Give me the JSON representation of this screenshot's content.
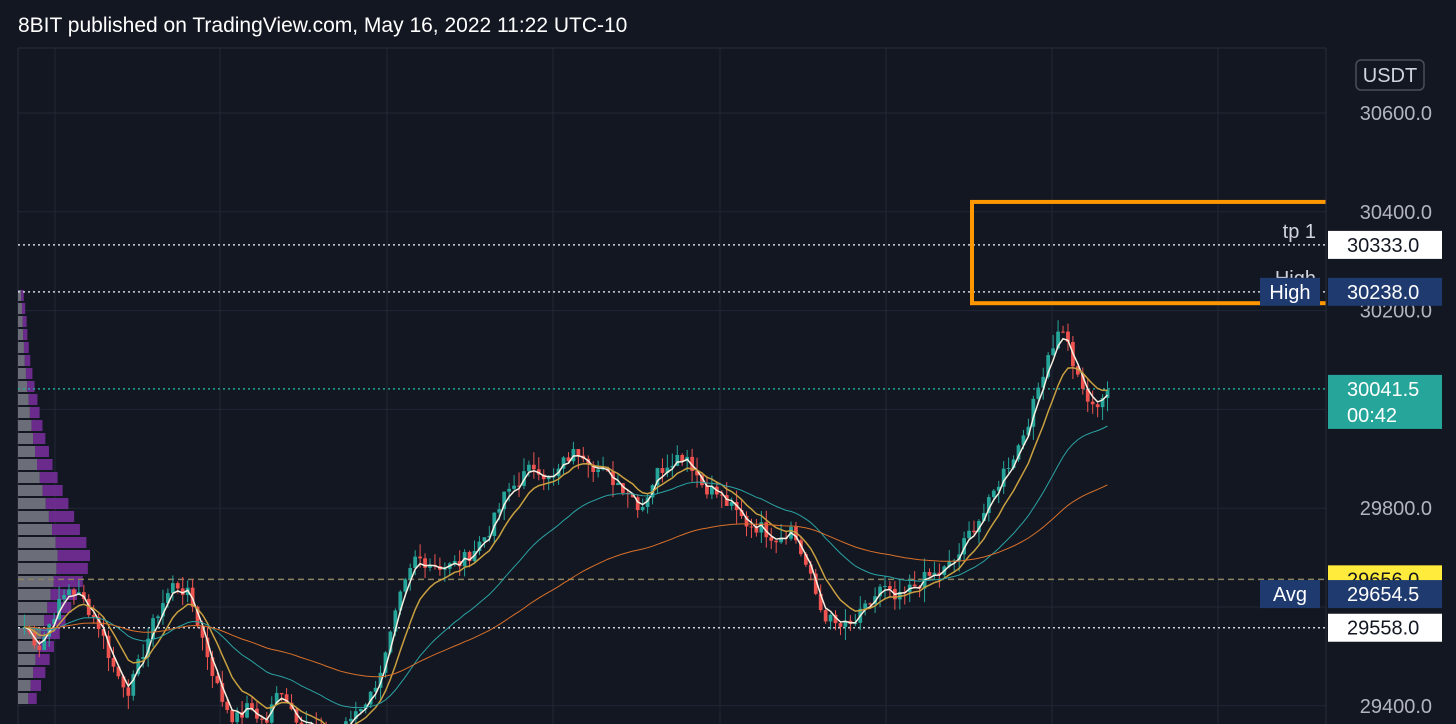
{
  "header": {
    "published_line": "8BIT published on TradingView.com, May 16, 2022 11:22 UTC-10"
  },
  "colors": {
    "background": "#131722",
    "grid": "#232734",
    "axis_text": "#b2b5be",
    "candle_up": "#26a69a",
    "candle_down": "#ef5350",
    "ema_fast": "#f7f0e0",
    "ema_mid": "#c9a040",
    "ema_slow": "#2aa3a3",
    "ema_long": "#d8702a",
    "highlight_box": "#ff9800",
    "last_price_bg": "#26a69a",
    "poc_bg": "#ffeb3b",
    "tag_dark_bg": "#1e3a6e",
    "volume_profile_a": "#6b6e78",
    "volume_profile_b": "#7b2fa0"
  },
  "chart_data": {
    "type": "candlestick",
    "currency": "USDT",
    "ylim": [
      29360,
      30700
    ],
    "y_ticks": [
      "30600.0",
      "30400.0",
      "30200.0",
      "29800.0",
      "29400.0"
    ],
    "y_tick_values": [
      30600,
      30400,
      30200,
      29800,
      29400
    ],
    "price_lines": [
      {
        "label": "tp 1",
        "value": 30333.0,
        "price_text": "30333.0",
        "style": "dotted",
        "tag": "white"
      },
      {
        "label": "High",
        "value": 30238.0,
        "price_text": "30238.0",
        "style": "dotted",
        "tag": "dark"
      },
      {
        "label": "",
        "value": 30041.5,
        "price_text": "30041.5",
        "countdown": "00:42",
        "style": "dotted",
        "tag": "last"
      },
      {
        "label": "",
        "value": 29656.0,
        "price_text": "29656.0",
        "style": "dashed",
        "tag": "yellow"
      },
      {
        "label": "Avg",
        "value": 29654.5,
        "price_text": "29654.5",
        "style": "none",
        "tag": "dark"
      },
      {
        "label": "",
        "value": 29558.0,
        "price_text": "29558.0",
        "style": "dotted",
        "tag": "white"
      }
    ],
    "highlight_zone": {
      "from": 30215,
      "to": 30420
    },
    "close_path": [
      29560,
      29520,
      29590,
      29640,
      29610,
      29560,
      29470,
      29430,
      29520,
      29600,
      29650,
      29620,
      29520,
      29420,
      29370,
      29400,
      29360,
      29440,
      29380,
      29360,
      29330,
      29340,
      29390,
      29420,
      29500,
      29620,
      29700,
      29690,
      29680,
      29690,
      29720,
      29760,
      29830,
      29860,
      29890,
      29850,
      29900,
      29920,
      29880,
      29860,
      29840,
      29800,
      29870,
      29900,
      29910,
      29850,
      29830,
      29800,
      29770,
      29760,
      29740,
      29760,
      29680,
      29590,
      29560,
      29560,
      29600,
      29640,
      29610,
      29640,
      29660,
      29670,
      29700,
      29760,
      29800,
      29870,
      29920,
      30000,
      30110,
      30170,
      30060,
      30000,
      30041.5
    ],
    "volume_profile": [
      0.08,
      0.1,
      0.12,
      0.13,
      0.15,
      0.17,
      0.2,
      0.23,
      0.27,
      0.3,
      0.34,
      0.38,
      0.43,
      0.48,
      0.55,
      0.62,
      0.7,
      0.78,
      0.86,
      0.95,
      1.0,
      0.97,
      0.9,
      0.82,
      0.74,
      0.66,
      0.58,
      0.5,
      0.44,
      0.38,
      0.32,
      0.26
    ]
  }
}
